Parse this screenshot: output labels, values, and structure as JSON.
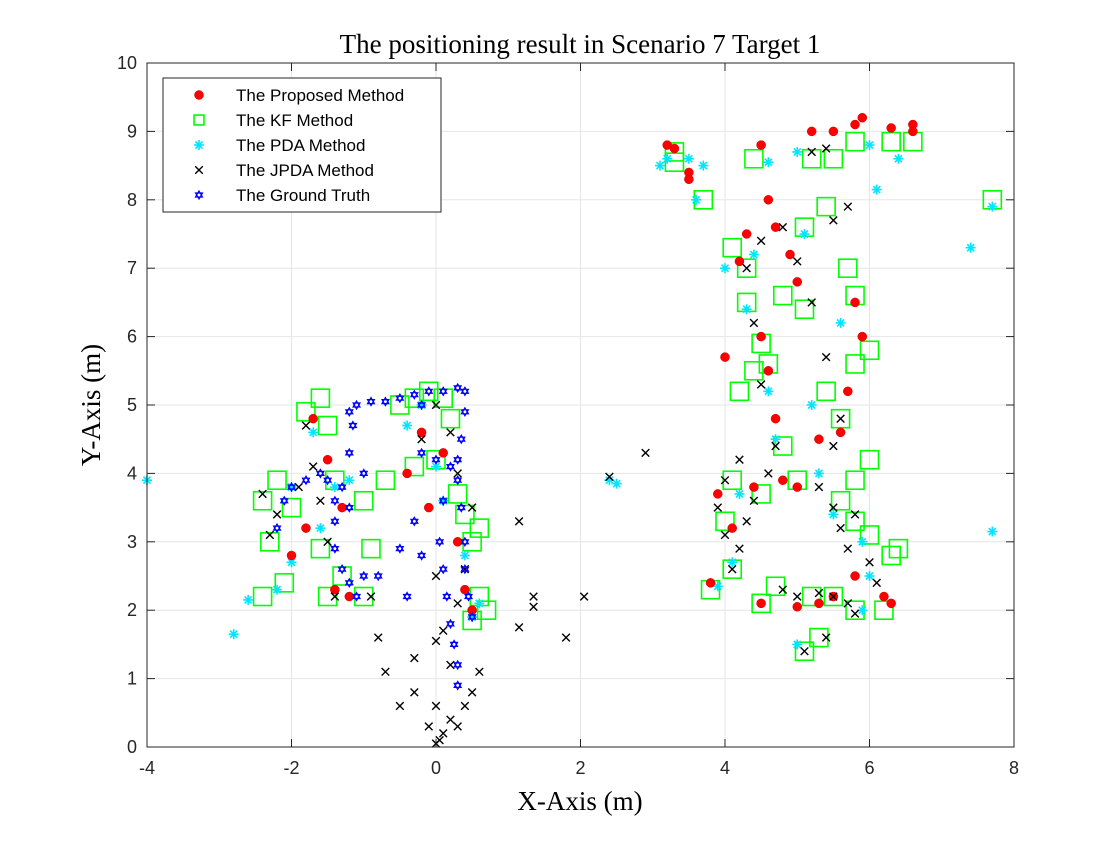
{
  "chart_data": {
    "type": "scatter",
    "title": "The positioning result in Scenario 7 Target 1",
    "xlabel": "X-Axis (m)",
    "ylabel": "Y-Axis (m)",
    "xlim": [
      -4,
      8
    ],
    "ylim": [
      0,
      10
    ],
    "xticks": [
      "-4",
      "-2",
      "0",
      "2",
      "4",
      "6",
      "8"
    ],
    "yticks": [
      "0",
      "1",
      "2",
      "3",
      "4",
      "5",
      "6",
      "7",
      "8",
      "9",
      "10"
    ],
    "grid": true,
    "legend_position": "top-left",
    "series": [
      {
        "name": "The Proposed Method",
        "marker": "filled-circle",
        "color": "#ff0000",
        "points": [
          [
            3.2,
            8.8
          ],
          [
            3.3,
            8.75
          ],
          [
            3.5,
            8.4
          ],
          [
            3.5,
            8.3
          ],
          [
            4.5,
            8.8
          ],
          [
            4.6,
            8.0
          ],
          [
            5.2,
            9.0
          ],
          [
            5.5,
            9.0
          ],
          [
            5.8,
            9.1
          ],
          [
            5.9,
            9.2
          ],
          [
            6.3,
            9.05
          ],
          [
            6.6,
            9.1
          ],
          [
            6.6,
            9.0
          ],
          [
            4.3,
            7.5
          ],
          [
            4.2,
            7.1
          ],
          [
            4.5,
            6.0
          ],
          [
            4.6,
            5.5
          ],
          [
            4.7,
            4.8
          ],
          [
            4.8,
            3.9
          ],
          [
            5.0,
            3.8
          ],
          [
            5.3,
            4.5
          ],
          [
            5.6,
            4.6
          ],
          [
            5.7,
            5.2
          ],
          [
            5.9,
            6.0
          ],
          [
            5.8,
            6.5
          ],
          [
            4.0,
            5.7
          ],
          [
            4.1,
            3.2
          ],
          [
            4.5,
            2.1
          ],
          [
            5.0,
            2.05
          ],
          [
            5.3,
            2.1
          ],
          [
            5.5,
            2.2
          ],
          [
            5.8,
            2.5
          ],
          [
            6.2,
            2.2
          ],
          [
            6.3,
            2.1
          ],
          [
            3.8,
            2.4
          ],
          [
            3.9,
            3.7
          ],
          [
            4.4,
            3.8
          ],
          [
            -1.7,
            4.8
          ],
          [
            -1.5,
            4.2
          ],
          [
            -1.3,
            3.5
          ],
          [
            -1.8,
            3.2
          ],
          [
            -2.0,
            2.8
          ],
          [
            -1.4,
            2.3
          ],
          [
            -1.2,
            2.2
          ],
          [
            -0.4,
            4.0
          ],
          [
            -0.2,
            4.6
          ],
          [
            -0.1,
            3.5
          ],
          [
            0.1,
            4.3
          ],
          [
            0.3,
            3.0
          ],
          [
            0.4,
            2.3
          ],
          [
            0.5,
            2.0
          ],
          [
            4.7,
            7.6
          ],
          [
            4.9,
            7.2
          ],
          [
            5.0,
            6.8
          ]
        ]
      },
      {
        "name": "The KF Method",
        "marker": "open-square",
        "color": "#00ff00",
        "points": [
          [
            3.3,
            8.7
          ],
          [
            3.3,
            8.55
          ],
          [
            3.7,
            8.0
          ],
          [
            4.4,
            8.6
          ],
          [
            5.2,
            8.6
          ],
          [
            5.5,
            8.6
          ],
          [
            5.8,
            8.85
          ],
          [
            6.3,
            8.85
          ],
          [
            6.6,
            8.85
          ],
          [
            7.7,
            8.0
          ],
          [
            4.1,
            7.3
          ],
          [
            4.3,
            7.0
          ],
          [
            4.3,
            6.5
          ],
          [
            4.5,
            5.9
          ],
          [
            4.6,
            5.6
          ],
          [
            4.8,
            4.4
          ],
          [
            5.1,
            7.6
          ],
          [
            5.4,
            7.9
          ],
          [
            5.7,
            7.0
          ],
          [
            5.8,
            6.6
          ],
          [
            5.8,
            5.6
          ],
          [
            6.0,
            5.8
          ],
          [
            6.0,
            4.2
          ],
          [
            5.8,
            3.9
          ],
          [
            5.6,
            3.6
          ],
          [
            5.8,
            3.3
          ],
          [
            6.0,
            3.1
          ],
          [
            6.3,
            2.8
          ],
          [
            6.4,
            2.9
          ],
          [
            6.2,
            2.0
          ],
          [
            5.8,
            2.0
          ],
          [
            5.5,
            2.2
          ],
          [
            5.2,
            2.2
          ],
          [
            4.7,
            2.35
          ],
          [
            4.5,
            2.1
          ],
          [
            4.1,
            2.6
          ],
          [
            4.0,
            3.3
          ],
          [
            3.8,
            2.3
          ],
          [
            4.1,
            3.9
          ],
          [
            4.5,
            3.7
          ],
          [
            5.0,
            3.9
          ],
          [
            5.1,
            1.4
          ],
          [
            5.3,
            1.6
          ],
          [
            4.2,
            5.2
          ],
          [
            4.4,
            5.5
          ],
          [
            4.8,
            6.6
          ],
          [
            5.1,
            6.4
          ],
          [
            5.4,
            5.2
          ],
          [
            5.6,
            4.8
          ],
          [
            -2.4,
            3.6
          ],
          [
            -2.3,
            3.0
          ],
          [
            -2.2,
            3.9
          ],
          [
            -2.1,
            2.4
          ],
          [
            -2.4,
            2.2
          ],
          [
            -1.8,
            4.9
          ],
          [
            -1.6,
            5.1
          ],
          [
            -1.5,
            4.7
          ],
          [
            -1.4,
            3.9
          ],
          [
            -1.5,
            2.2
          ],
          [
            -1.6,
            2.9
          ],
          [
            -1.3,
            2.5
          ],
          [
            -1.0,
            2.2
          ],
          [
            -0.9,
            2.9
          ],
          [
            -0.5,
            5.0
          ],
          [
            -0.3,
            5.1
          ],
          [
            -0.1,
            5.2
          ],
          [
            0.1,
            5.1
          ],
          [
            0.2,
            4.8
          ],
          [
            -0.3,
            4.1
          ],
          [
            0.0,
            4.2
          ],
          [
            0.3,
            3.7
          ],
          [
            0.4,
            3.4
          ],
          [
            0.5,
            3.0
          ],
          [
            0.6,
            3.2
          ],
          [
            0.6,
            2.2
          ],
          [
            0.7,
            2.0
          ],
          [
            0.5,
            1.85
          ],
          [
            -1.0,
            3.6
          ],
          [
            -0.7,
            3.9
          ],
          [
            -2.0,
            3.5
          ]
        ]
      },
      {
        "name": "The PDA Method",
        "marker": "asterisk",
        "color": "#00e5ff",
        "points": [
          [
            -4.0,
            3.9
          ],
          [
            -2.8,
            1.65
          ],
          [
            -2.6,
            2.15
          ],
          [
            -2.2,
            2.3
          ],
          [
            -2.0,
            2.7
          ],
          [
            3.1,
            8.5
          ],
          [
            3.2,
            8.6
          ],
          [
            3.5,
            8.6
          ],
          [
            3.7,
            8.5
          ],
          [
            3.6,
            8.0
          ],
          [
            4.6,
            8.55
          ],
          [
            5.0,
            8.7
          ],
          [
            6.0,
            8.8
          ],
          [
            6.4,
            8.6
          ],
          [
            6.1,
            8.15
          ],
          [
            7.4,
            7.3
          ],
          [
            7.7,
            7.9
          ],
          [
            7.7,
            3.15
          ],
          [
            2.4,
            3.9
          ],
          [
            2.5,
            3.85
          ],
          [
            4.3,
            6.4
          ],
          [
            4.6,
            5.2
          ],
          [
            4.7,
            4.5
          ],
          [
            5.2,
            5.0
          ],
          [
            5.3,
            4.0
          ],
          [
            5.5,
            3.4
          ],
          [
            5.9,
            3.0
          ],
          [
            6.0,
            2.5
          ],
          [
            5.9,
            2.0
          ],
          [
            5.0,
            1.5
          ],
          [
            4.2,
            3.7
          ],
          [
            4.1,
            2.7
          ],
          [
            3.9,
            2.35
          ],
          [
            -1.7,
            4.6
          ],
          [
            -1.4,
            3.8
          ],
          [
            -1.6,
            3.2
          ],
          [
            -2.0,
            3.8
          ],
          [
            -1.2,
            3.9
          ],
          [
            -0.4,
            4.7
          ],
          [
            -0.2,
            5.0
          ],
          [
            0.0,
            4.1
          ],
          [
            0.1,
            3.6
          ],
          [
            0.4,
            2.8
          ],
          [
            0.6,
            2.1
          ],
          [
            0.5,
            1.9
          ],
          [
            4.0,
            7.0
          ],
          [
            4.4,
            7.2
          ],
          [
            5.1,
            7.5
          ],
          [
            5.6,
            6.2
          ]
        ]
      },
      {
        "name": "The JPDA Method",
        "marker": "x-mark",
        "color": "#000000",
        "points": [
          [
            0.0,
            0.05
          ],
          [
            0.05,
            0.1
          ],
          [
            0.1,
            0.2
          ],
          [
            -0.1,
            0.3
          ],
          [
            0.0,
            0.6
          ],
          [
            0.2,
            0.4
          ],
          [
            -0.3,
            0.8
          ],
          [
            -0.5,
            0.6
          ],
          [
            0.3,
            0.3
          ],
          [
            0.4,
            0.6
          ],
          [
            0.5,
            0.8
          ],
          [
            0.6,
            1.1
          ],
          [
            -0.7,
            1.1
          ],
          [
            -0.3,
            1.3
          ],
          [
            0.0,
            1.55
          ],
          [
            0.1,
            1.7
          ],
          [
            0.2,
            1.2
          ],
          [
            -0.8,
            1.6
          ],
          [
            -0.9,
            2.2
          ],
          [
            0.0,
            2.5
          ],
          [
            1.15,
            3.3
          ],
          [
            1.15,
            1.75
          ],
          [
            1.35,
            2.2
          ],
          [
            1.35,
            2.05
          ],
          [
            1.8,
            1.6
          ],
          [
            2.05,
            2.2
          ],
          [
            2.4,
            3.95
          ],
          [
            2.9,
            4.3
          ],
          [
            0.3,
            2.1
          ],
          [
            0.4,
            2.6
          ],
          [
            0.5,
            3.5
          ],
          [
            0.3,
            4.0
          ],
          [
            0.2,
            4.6
          ],
          [
            0.0,
            5.0
          ],
          [
            -0.2,
            4.5
          ],
          [
            -1.4,
            2.2
          ],
          [
            -1.5,
            3.0
          ],
          [
            -1.6,
            3.6
          ],
          [
            -1.7,
            4.1
          ],
          [
            -1.9,
            3.8
          ],
          [
            -2.2,
            3.4
          ],
          [
            -2.4,
            3.7
          ],
          [
            -2.3,
            3.1
          ],
          [
            -1.8,
            4.7
          ],
          [
            4.1,
            2.6
          ],
          [
            4.2,
            2.9
          ],
          [
            4.3,
            3.3
          ],
          [
            4.4,
            3.6
          ],
          [
            4.6,
            4.0
          ],
          [
            4.7,
            4.4
          ],
          [
            4.8,
            2.3
          ],
          [
            5.0,
            2.2
          ],
          [
            5.3,
            2.25
          ],
          [
            5.5,
            2.2
          ],
          [
            5.7,
            2.1
          ],
          [
            5.8,
            1.95
          ],
          [
            5.4,
            1.6
          ],
          [
            5.1,
            1.4
          ],
          [
            5.3,
            3.8
          ],
          [
            5.5,
            3.5
          ],
          [
            5.6,
            3.2
          ],
          [
            5.7,
            2.9
          ],
          [
            5.8,
            3.4
          ],
          [
            6.0,
            2.7
          ],
          [
            6.1,
            2.4
          ],
          [
            5.5,
            4.4
          ],
          [
            5.6,
            4.8
          ],
          [
            5.4,
            5.7
          ],
          [
            5.2,
            6.5
          ],
          [
            5.0,
            7.1
          ],
          [
            4.8,
            7.6
          ],
          [
            4.5,
            7.4
          ],
          [
            4.3,
            7.0
          ],
          [
            4.4,
            6.2
          ],
          [
            4.5,
            5.3
          ],
          [
            4.2,
            4.2
          ],
          [
            5.2,
            8.7
          ],
          [
            5.4,
            8.75
          ],
          [
            5.7,
            7.9
          ],
          [
            5.5,
            7.7
          ],
          [
            4.0,
            3.9
          ],
          [
            3.9,
            3.5
          ],
          [
            4.0,
            3.1
          ]
        ]
      },
      {
        "name": "The Ground Truth",
        "marker": "open-hexagram",
        "color": "#0000ff",
        "points": [
          [
            -2.2,
            3.2
          ],
          [
            -2.1,
            3.6
          ],
          [
            -2.0,
            3.8
          ],
          [
            -1.8,
            3.9
          ],
          [
            -1.6,
            4.0
          ],
          [
            -1.5,
            3.9
          ],
          [
            -1.4,
            3.6
          ],
          [
            -1.4,
            3.3
          ],
          [
            -1.4,
            2.9
          ],
          [
            -1.3,
            2.6
          ],
          [
            -1.2,
            2.4
          ],
          [
            -1.1,
            2.2
          ],
          [
            -1.0,
            2.5
          ],
          [
            -0.8,
            2.5
          ],
          [
            -1.3,
            3.8
          ],
          [
            -1.2,
            4.3
          ],
          [
            -1.15,
            4.7
          ],
          [
            -1.1,
            5.0
          ],
          [
            -0.9,
            5.05
          ],
          [
            -0.7,
            5.05
          ],
          [
            -0.5,
            5.1
          ],
          [
            -0.3,
            5.15
          ],
          [
            -0.1,
            5.2
          ],
          [
            0.1,
            5.2
          ],
          [
            0.3,
            5.25
          ],
          [
            0.4,
            5.2
          ],
          [
            0.4,
            4.9
          ],
          [
            0.35,
            4.5
          ],
          [
            0.3,
            4.2
          ],
          [
            0.3,
            3.9
          ],
          [
            0.35,
            3.5
          ],
          [
            0.4,
            3.0
          ],
          [
            0.4,
            2.6
          ],
          [
            0.45,
            2.2
          ],
          [
            0.5,
            1.9
          ],
          [
            0.2,
            4.1
          ],
          [
            0.0,
            4.2
          ],
          [
            -0.2,
            4.3
          ],
          [
            0.1,
            3.6
          ],
          [
            0.05,
            3.0
          ],
          [
            0.1,
            2.6
          ],
          [
            0.15,
            2.2
          ],
          [
            0.2,
            1.8
          ],
          [
            0.25,
            1.5
          ],
          [
            0.3,
            1.2
          ],
          [
            0.3,
            0.9
          ],
          [
            -0.3,
            3.3
          ],
          [
            -0.2,
            2.8
          ],
          [
            -0.5,
            2.9
          ],
          [
            -1.2,
            3.5
          ],
          [
            -1.0,
            4.0
          ],
          [
            -1.2,
            4.9
          ],
          [
            -0.4,
            2.2
          ],
          [
            -0.2,
            5.0
          ]
        ]
      }
    ]
  }
}
